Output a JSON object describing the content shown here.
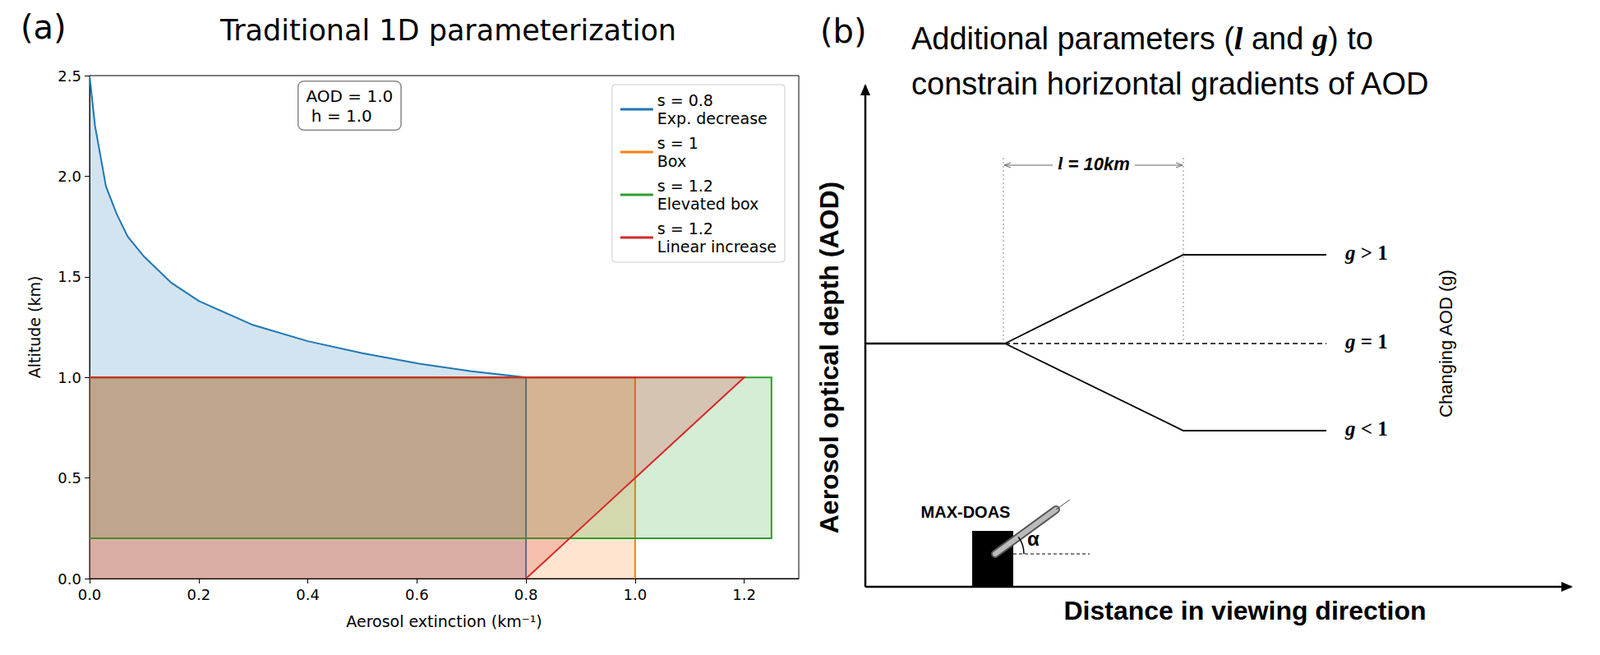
{
  "chart_data": {
    "type": "area",
    "panel_label": "(a)",
    "title": "Traditional 1D parameterization",
    "annotation": "AOD = 1.0\n h = 1.0",
    "x_label": "Aerosol extinction (km⁻¹)",
    "y_label": "Altitude (km)",
    "xlim": [
      0,
      1.3
    ],
    "xticks": [
      {
        "value": 0,
        "label": "0.0"
      },
      0.2,
      0.4,
      0.6,
      0.8,
      {
        "value": 1,
        "label": "1.0"
      },
      1.2
    ],
    "ylim": [
      0,
      2.5
    ],
    "yticks": [
      {
        "value": 0,
        "label": "0.0"
      },
      0.5,
      {
        "value": 1,
        "label": "1.0"
      },
      1.5,
      {
        "value": 2,
        "label": "2.0"
      },
      2.5
    ],
    "grid": false,
    "legend": "upper right",
    "series": [
      {
        "name": "s = 0.8\nExp. decrease",
        "color": "#1f77b4",
        "x": [
          0.8,
          0.8,
          0.7,
          0.6,
          0.5,
          0.4,
          0.3,
          0.2,
          0.15,
          0.1,
          0.07,
          0.05,
          0.03,
          0.02,
          0.01,
          0.0
        ],
        "y": [
          0,
          1.0,
          1.03,
          1.07,
          1.12,
          1.18,
          1.26,
          1.38,
          1.47,
          1.6,
          1.7,
          1.81,
          1.95,
          2.1,
          2.25,
          2.5
        ]
      },
      {
        "name": "s = 1\nBox",
        "color": "#ff7f0e",
        "x": [
          1,
          1,
          0
        ],
        "y": [
          0,
          1,
          1
        ]
      },
      {
        "name": "s = 1.2\nElevated box",
        "color": "#2ca02c",
        "x": [
          0,
          1.25,
          1.25,
          0
        ],
        "y": [
          0.2,
          0.2,
          1.0,
          1.0
        ]
      },
      {
        "name": "s = 1.2\nLinear increase",
        "color": "#d62728",
        "x": [
          0.8,
          1.2,
          0
        ],
        "y": [
          0,
          1.0,
          1.0
        ]
      }
    ]
  },
  "diagram": {
    "panel_label": "(b)",
    "title": "Additional parameters (l and g) to\nconstrain horizontal gradients of AOD",
    "y_axis_label": "Aerosol optical depth (AOD)",
    "x_axis_label": "Distance in viewing direction",
    "length_label": "l = 10km",
    "gradient_label": "Changing AOD (g)",
    "branches": [
      "g > 1",
      "g = 1",
      "g < 1"
    ],
    "instrument": "MAX-DOAS",
    "angle": "α"
  }
}
